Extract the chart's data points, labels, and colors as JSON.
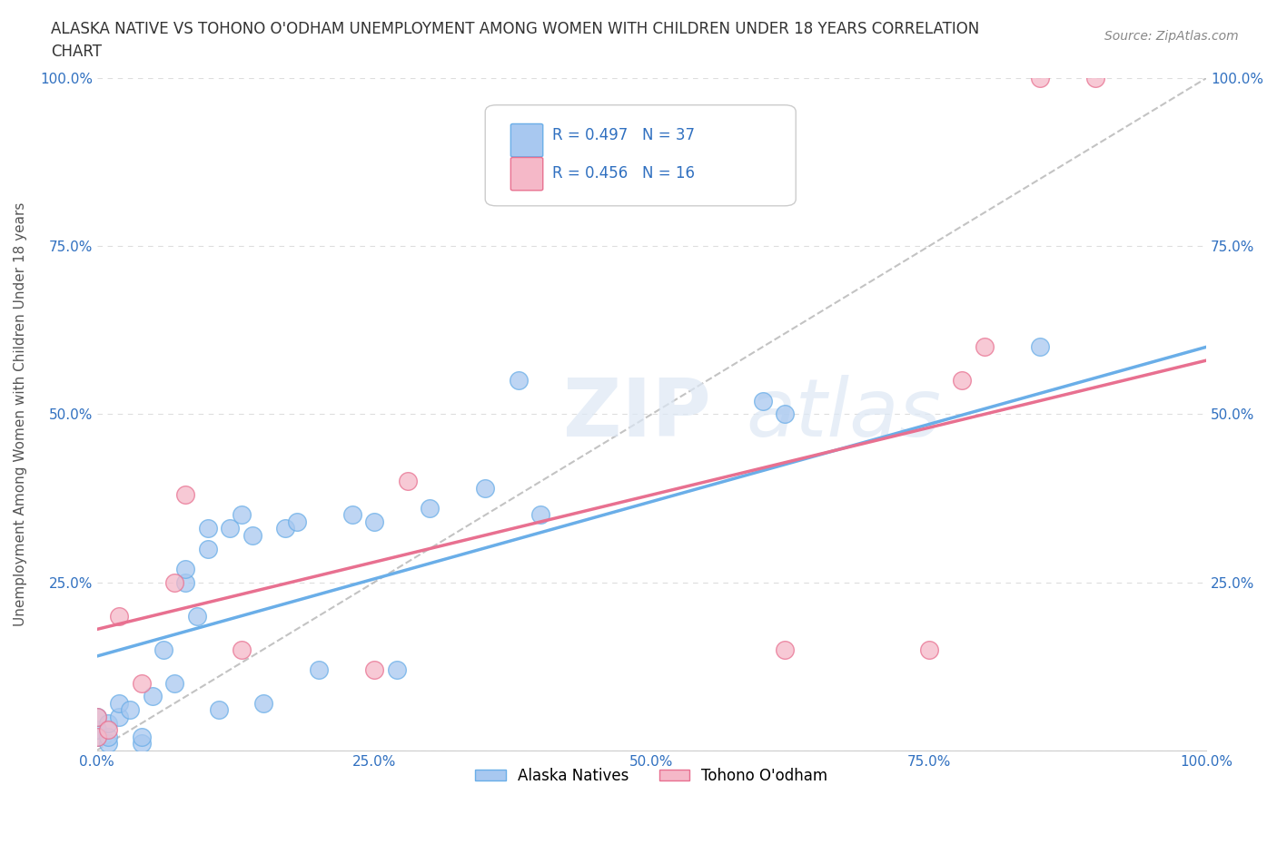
{
  "title_line1": "ALASKA NATIVE VS TOHONO O'ODHAM UNEMPLOYMENT AMONG WOMEN WITH CHILDREN UNDER 18 YEARS CORRELATION",
  "title_line2": "CHART",
  "source": "Source: ZipAtlas.com",
  "ylabel": "Unemployment Among Women with Children Under 18 years",
  "xlim": [
    0.0,
    1.0
  ],
  "ylim": [
    0.0,
    1.0
  ],
  "xtick_labels": [
    "0.0%",
    "25.0%",
    "50.0%",
    "75.0%",
    "100.0%"
  ],
  "xtick_vals": [
    0.0,
    0.25,
    0.5,
    0.75,
    1.0
  ],
  "ytick_labels": [
    "",
    "25.0%",
    "50.0%",
    "75.0%",
    "100.0%"
  ],
  "ytick_vals": [
    0.0,
    0.25,
    0.5,
    0.75,
    1.0
  ],
  "alaska_color": "#a8c8f0",
  "alaska_edge": "#6aaee8",
  "tohono_color": "#f5b8c8",
  "tohono_edge": "#e87090",
  "alaska_R": 0.497,
  "alaska_N": 37,
  "tohono_R": 0.456,
  "tohono_N": 16,
  "legend_R_color": "#3070c0",
  "watermark_text": "ZIP",
  "watermark_text2": "atlas",
  "alaska_points_x": [
    0.0,
    0.0,
    0.0,
    0.01,
    0.01,
    0.01,
    0.02,
    0.02,
    0.03,
    0.04,
    0.04,
    0.05,
    0.06,
    0.07,
    0.08,
    0.08,
    0.09,
    0.1,
    0.1,
    0.11,
    0.12,
    0.13,
    0.14,
    0.15,
    0.17,
    0.18,
    0.2,
    0.23,
    0.25,
    0.27,
    0.3,
    0.35,
    0.38,
    0.4,
    0.6,
    0.62,
    0.85
  ],
  "alaska_points_y": [
    0.02,
    0.03,
    0.05,
    0.01,
    0.02,
    0.04,
    0.05,
    0.07,
    0.06,
    0.01,
    0.02,
    0.08,
    0.15,
    0.1,
    0.25,
    0.27,
    0.2,
    0.3,
    0.33,
    0.06,
    0.33,
    0.35,
    0.32,
    0.07,
    0.33,
    0.34,
    0.12,
    0.35,
    0.34,
    0.12,
    0.36,
    0.39,
    0.55,
    0.35,
    0.52,
    0.5,
    0.6
  ],
  "tohono_points_x": [
    0.0,
    0.0,
    0.01,
    0.02,
    0.04,
    0.07,
    0.08,
    0.13,
    0.25,
    0.28,
    0.62,
    0.75,
    0.78,
    0.8,
    0.85,
    0.9
  ],
  "tohono_points_y": [
    0.02,
    0.05,
    0.03,
    0.2,
    0.1,
    0.25,
    0.38,
    0.15,
    0.12,
    0.4,
    0.15,
    0.15,
    0.55,
    0.6,
    1.0,
    1.0
  ],
  "alaska_line_x": [
    0.0,
    1.0
  ],
  "alaska_line_y": [
    0.14,
    0.6
  ],
  "tohono_line_x": [
    0.0,
    1.0
  ],
  "tohono_line_y": [
    0.18,
    0.58
  ],
  "dash_line_x": [
    0.0,
    1.0
  ],
  "dash_line_y": [
    0.0,
    1.0
  ],
  "background_color": "#ffffff",
  "grid_color": "#dddddd",
  "title_color": "#333333",
  "legend_label_alaska": "Alaska Natives",
  "legend_label_tohono": "Tohono O'odham"
}
